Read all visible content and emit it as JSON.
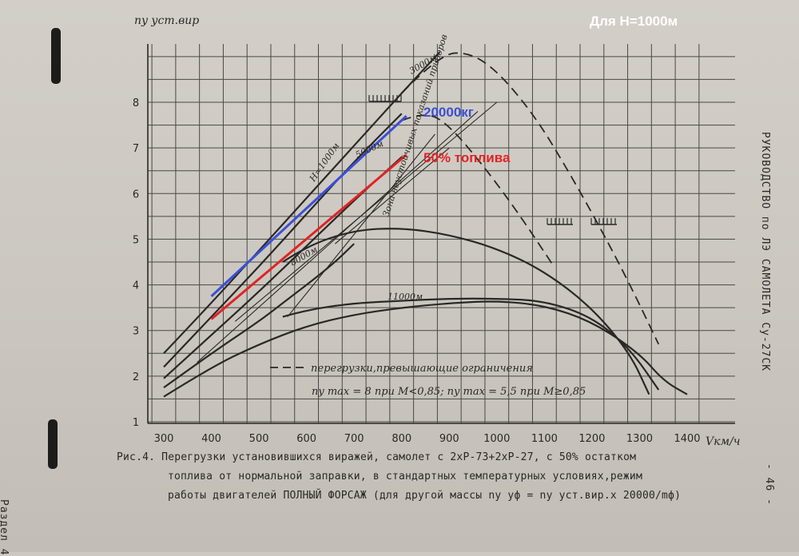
{
  "corner_title": "Для H=1000м",
  "overlay_labels": {
    "mass": "20000кг",
    "fuel": "50% топлива"
  },
  "side_text_right": "РУКОВОДСТВО по ЛЭ САМОЛЕТА Су-27СК",
  "side_text_left": "Раздел 4",
  "page_number": "- 46 -",
  "caption": {
    "line1": "Рис.4. Перегрузки установившихся виражей, самолет с 2хР-73+2хР-27, с 50% остатком",
    "line2": "топлива от нормальной заправки, в стандартных температурных условиях,режим",
    "line3": "работы двигателей ПОЛНЫЙ ФОРСАЖ (для другой массы  ny уф = ny уст.вир.x 20000/mф)"
  },
  "colors": {
    "blue_overlay": "#3b4fd8",
    "red_overlay": "#e02424",
    "ink": "#2a2826"
  },
  "chart_data": {
    "type": "line",
    "ylabel": "ny уст.вир",
    "xlabel": "Vкм/ч",
    "xlim": [
      300,
      1400
    ],
    "ylim": [
      1,
      9
    ],
    "x_ticks": [
      300,
      400,
      500,
      600,
      700,
      800,
      900,
      1000,
      1100,
      1200,
      1300,
      1400
    ],
    "y_ticks": [
      1,
      2,
      3,
      4,
      5,
      6,
      7,
      8
    ],
    "grid": true,
    "series": [
      {
        "name": "H=1000м",
        "style": "solid",
        "points": [
          [
            300,
            2.5
          ],
          [
            400,
            3.6
          ],
          [
            500,
            4.75
          ],
          [
            600,
            5.9
          ],
          [
            700,
            7.05
          ],
          [
            800,
            8.2
          ],
          [
            880,
            9.1
          ]
        ]
      },
      {
        "name": "3000м",
        "style": "solid",
        "points": [
          [
            300,
            2.2
          ],
          [
            400,
            3.3
          ],
          [
            500,
            4.4
          ],
          [
            600,
            5.55
          ],
          [
            700,
            6.7
          ],
          [
            800,
            7.75
          ]
        ]
      },
      {
        "name": "5000м",
        "style": "solid",
        "points": [
          [
            300,
            1.95
          ],
          [
            400,
            2.9
          ],
          [
            500,
            3.85
          ],
          [
            600,
            4.85
          ],
          [
            700,
            5.85
          ],
          [
            800,
            6.8
          ]
        ]
      },
      {
        "name": "8000м",
        "style": "solid",
        "points": [
          [
            300,
            1.75
          ],
          [
            400,
            2.5
          ],
          [
            500,
            3.2
          ],
          [
            550,
            3.6
          ],
          [
            650,
            4.4
          ],
          [
            700,
            4.9
          ]
        ]
      },
      {
        "name": "",
        "style": "solid",
        "points": [
          [
            300,
            1.55
          ],
          [
            400,
            2.2
          ],
          [
            500,
            2.7
          ],
          [
            600,
            3.1
          ],
          [
            700,
            3.35
          ],
          [
            800,
            3.5
          ],
          [
            900,
            3.6
          ],
          [
            1000,
            3.65
          ],
          [
            1100,
            3.55
          ],
          [
            1200,
            3.2
          ],
          [
            1300,
            2.5
          ],
          [
            1350,
            1.9
          ],
          [
            1400,
            1.6
          ]
        ]
      },
      {
        "name": "11000м",
        "style": "solid",
        "points": [
          [
            550,
            3.3
          ],
          [
            600,
            3.45
          ],
          [
            700,
            3.6
          ],
          [
            800,
            3.65
          ],
          [
            900,
            3.7
          ],
          [
            1000,
            3.7
          ],
          [
            1100,
            3.65
          ],
          [
            1200,
            3.3
          ],
          [
            1280,
            2.6
          ],
          [
            1340,
            1.7
          ]
        ]
      },
      {
        "name": "",
        "style": "solid",
        "points": [
          [
            550,
            4.5
          ],
          [
            600,
            4.85
          ],
          [
            700,
            5.2
          ],
          [
            800,
            5.25
          ],
          [
            900,
            5.1
          ],
          [
            1000,
            4.8
          ],
          [
            1100,
            4.3
          ],
          [
            1200,
            3.5
          ],
          [
            1280,
            2.5
          ],
          [
            1320,
            1.6
          ]
        ]
      },
      {
        "name": "перегрузки,превышающие ограничения",
        "style": "dashed",
        "points": [
          [
            800,
            8.2
          ],
          [
            880,
            9.05
          ],
          [
            940,
            9.1
          ],
          [
            1000,
            8.7
          ],
          [
            1080,
            7.7
          ],
          [
            1150,
            6.5
          ],
          [
            1220,
            5.2
          ],
          [
            1280,
            4.0
          ],
          [
            1340,
            2.7
          ]
        ]
      },
      {
        "name": "",
        "style": "dashed",
        "points": [
          [
            800,
            7.6
          ],
          [
            850,
            7.8
          ],
          [
            900,
            7.5
          ],
          [
            980,
            6.5
          ],
          [
            1050,
            5.5
          ],
          [
            1120,
            4.4
          ]
        ]
      },
      {
        "name": "20000кг",
        "style": "overlay",
        "color": "#3b4fd8",
        "points": [
          [
            400,
            3.75
          ],
          [
            810,
            7.7
          ]
        ]
      },
      {
        "name": "50% топлива",
        "style": "overlay",
        "color": "#e02424",
        "points": [
          [
            400,
            3.25
          ],
          [
            810,
            6.85
          ]
        ]
      }
    ],
    "annotations": [
      "Зона неустойчивых показаний приборов",
      "перегрузки,превышающие ограничения",
      "ny max = 8 при M<0,85; ny max = 5,5 при M≥0,85"
    ]
  }
}
